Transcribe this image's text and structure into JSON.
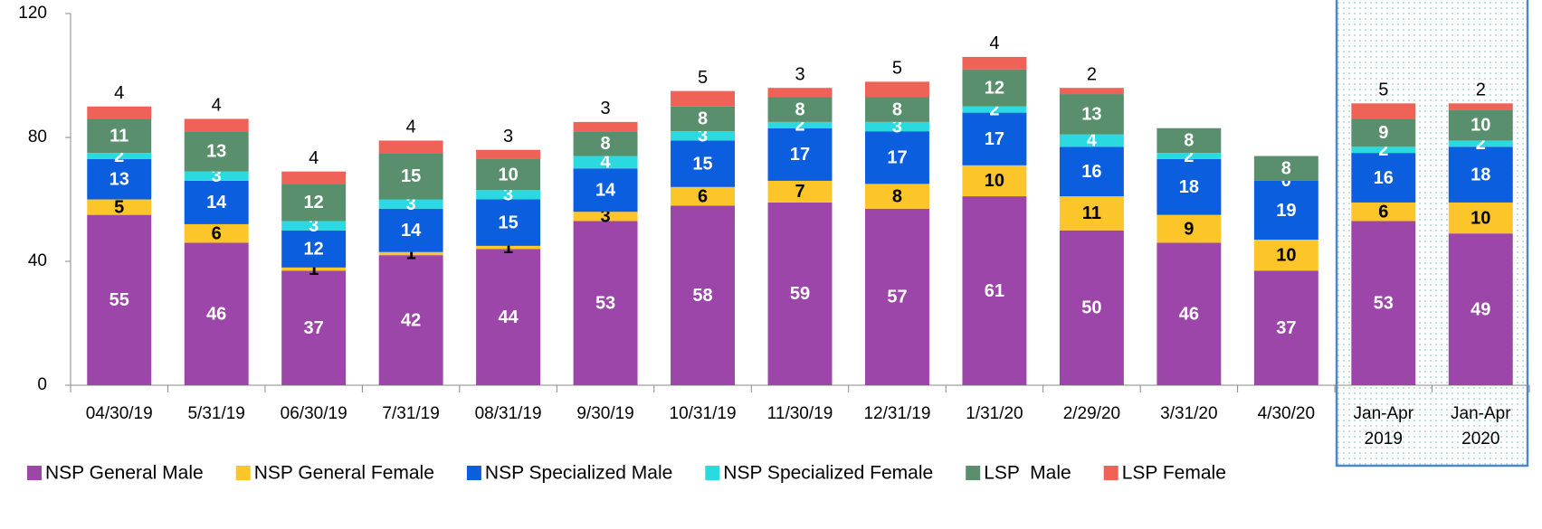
{
  "chart_data": {
    "type": "stacked_bar",
    "categories": [
      "04/30/19",
      "5/31/19",
      "06/30/19",
      "7/31/19",
      "08/31/19",
      "9/30/19",
      "10/31/19",
      "11/30/19",
      "12/31/19",
      "1/31/20",
      "2/29/20",
      "3/31/20",
      "4/30/20",
      "Jan-Apr 2019",
      "Jan-Apr 2020"
    ],
    "series": [
      {
        "name": "NSP General Male",
        "color": "#9b46a8",
        "values": [
          55,
          46,
          37,
          42,
          44,
          53,
          58,
          59,
          57,
          61,
          50,
          46,
          37,
          53,
          49
        ]
      },
      {
        "name": "NSP General Female",
        "color": "#fcc52a",
        "values": [
          5,
          6,
          1,
          1,
          1,
          3,
          6,
          7,
          8,
          10,
          11,
          9,
          10,
          6,
          10
        ]
      },
      {
        "name": "NSP Specialized Male",
        "color": "#0b5ede",
        "values": [
          13,
          14,
          12,
          14,
          15,
          14,
          15,
          17,
          17,
          17,
          16,
          18,
          19,
          16,
          18
        ]
      },
      {
        "name": "NSP Specialized Female",
        "color": "#2adadf",
        "values": [
          2,
          3,
          3,
          3,
          3,
          4,
          3,
          2,
          3,
          2,
          4,
          2,
          0,
          2,
          2
        ]
      },
      {
        "name": "LSP  Male",
        "color": "#5a8f6e",
        "values": [
          11,
          13,
          12,
          15,
          10,
          8,
          8,
          8,
          8,
          12,
          13,
          8,
          8,
          9,
          10
        ]
      },
      {
        "name": "LSP Female",
        "color": "#ee6257",
        "values": [
          4,
          4,
          4,
          4,
          3,
          3,
          5,
          3,
          5,
          4,
          2,
          null,
          null,
          5,
          2
        ]
      }
    ],
    "ylim": [
      0,
      120
    ],
    "yticks": [
      0,
      40,
      80,
      120
    ]
  }
}
